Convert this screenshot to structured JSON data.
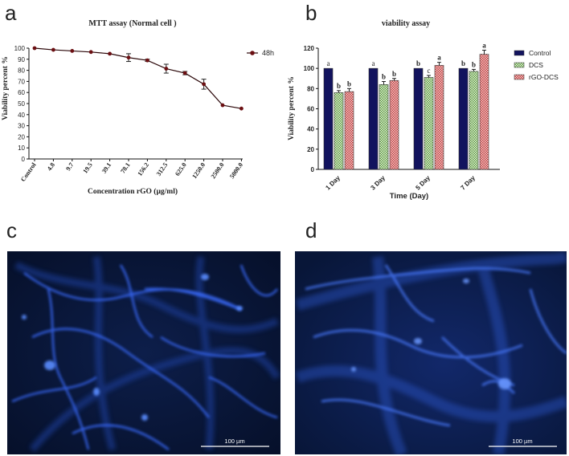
{
  "panels": {
    "a": "a",
    "b": "b",
    "c": "c",
    "d": "d"
  },
  "chart_data": [
    {
      "type": "line",
      "title": "MTT assay (Normal cell )",
      "xlabel": "Concentration rGO (µg/ml)",
      "ylabel": "Viability percent %",
      "categories": [
        "Control",
        "4.8",
        "9.7",
        "19.5",
        "39.1",
        "78.1",
        "156.2",
        "312.5",
        "625.0",
        "1250.0",
        "2500.0",
        "5000.0"
      ],
      "series": [
        {
          "name": "48h",
          "values": [
            100,
            98.5,
            97.5,
            96.5,
            95,
            91.5,
            89,
            81.5,
            77.5,
            67.5,
            48.5,
            45.5
          ],
          "errors": [
            0,
            0,
            0,
            0,
            0,
            3.5,
            1,
            4,
            1.5,
            4.5,
            0,
            0
          ]
        }
      ],
      "ylim": [
        0,
        100
      ],
      "yticks": [
        0,
        10,
        20,
        30,
        40,
        50,
        60,
        70,
        80,
        90,
        100
      ],
      "legend": "top-right",
      "grid": false,
      "colors": {
        "series": "#6b0f12"
      }
    },
    {
      "type": "bar",
      "title": "viability assay",
      "xlabel": "Time (Day)",
      "ylabel": "Viability percent %",
      "categories": [
        "1 Day",
        "3 Day",
        "5 Day",
        "7 Day"
      ],
      "series": [
        {
          "name": "Control",
          "values": [
            100,
            100,
            100,
            100
          ],
          "errors": [
            0,
            0,
            0,
            0
          ],
          "labels": [
            "a",
            "a",
            "b",
            "b"
          ],
          "color": "#1a1a6e"
        },
        {
          "name": "DCS",
          "values": [
            76,
            84,
            91,
            97
          ],
          "errors": [
            2,
            3,
            2,
            2
          ],
          "labels": [
            "b",
            "b",
            "c",
            "b"
          ],
          "color": "#6aa84f"
        },
        {
          "name": "rGO-DCS",
          "values": [
            77,
            88,
            103,
            114
          ],
          "errors": [
            3,
            2,
            3,
            4
          ],
          "labels": [
            "b",
            "b",
            "a",
            "a"
          ],
          "color": "#cc4a4a"
        }
      ],
      "ylim": [
        0,
        120
      ],
      "yticks": [
        0,
        20,
        40,
        60,
        80,
        100,
        120
      ],
      "legend": "top-right",
      "grid": false
    }
  ],
  "micrographs": [
    {
      "scale_bar": "100 µm"
    },
    {
      "scale_bar": "100 µm"
    }
  ]
}
